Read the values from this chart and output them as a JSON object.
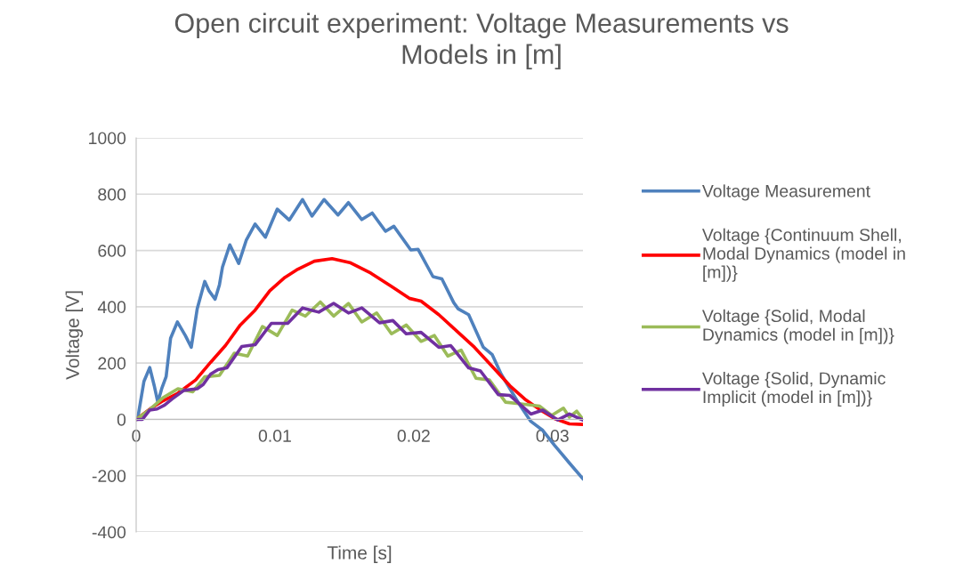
{
  "chart_data": {
    "type": "line",
    "title": "Open circuit experiment: Voltage Measurements vs Models in [m]",
    "xlabel": "Time [s]",
    "ylabel": "Voltage [V]",
    "xlim": [
      0,
      0.0322
    ],
    "xticks": [
      0,
      0.01,
      0.02,
      0.03
    ],
    "ylim": [
      -400,
      1000
    ],
    "yticks": [
      -400,
      -200,
      0,
      200,
      400,
      600,
      800,
      1000
    ],
    "grid": "y",
    "legend": "right",
    "marker": "none",
    "line_style": "solid",
    "series": [
      {
        "name": "Voltage Measurement",
        "color": "#4f81bd",
        "x": [
          0,
          0.0001,
          0.00056,
          0.00098,
          0.0013,
          0.00156,
          0.00184,
          0.00216,
          0.00248,
          0.00297,
          0.00354,
          0.00397,
          0.0044,
          0.00494,
          0.00526,
          0.00569,
          0.006,
          0.00622,
          0.00675,
          0.00739,
          0.00793,
          0.00857,
          0.00931,
          0.01017,
          0.01103,
          0.01199,
          0.01267,
          0.01354,
          0.01455,
          0.0153,
          0.01626,
          0.01701,
          0.01797,
          0.01857,
          0.01979,
          0.02032,
          0.02139,
          0.02203,
          0.02288,
          0.0232,
          0.02396,
          0.02502,
          0.02566,
          0.0263,
          0.02758,
          0.02844,
          0.0293,
          0.03015,
          0.03122,
          0.03218
        ],
        "values": [
          0,
          0,
          135,
          184,
          120,
          61,
          109,
          152,
          288,
          346,
          298,
          256,
          393,
          490,
          456,
          427,
          478,
          541,
          620,
          554,
          636,
          694,
          647,
          747,
          708,
          781,
          722,
          781,
          726,
          770,
          710,
          733,
          668,
          686,
          602,
          604,
          507,
          499,
          415,
          393,
          372,
          256,
          230,
          161,
          56,
          -7,
          -39,
          -92,
          -155,
          -210
        ]
      },
      {
        "name": "Voltage {Continuum Shell, Modal Dynamics (model in [m])}",
        "color": "#ff0000",
        "x": [
          0,
          0.00109,
          0.00194,
          0.00301,
          0.00429,
          0.00537,
          0.00643,
          0.0075,
          0.00857,
          0.00963,
          0.01071,
          0.01156,
          0.01284,
          0.01412,
          0.0154,
          0.0169,
          0.0184,
          0.01968,
          0.02053,
          0.02181,
          0.0231,
          0.02438,
          0.02566,
          0.02694,
          0.02801,
          0.02908,
          0.03015,
          0.03122,
          0.03218
        ],
        "values": [
          0,
          40,
          66,
          93,
          140,
          203,
          262,
          335,
          388,
          457,
          504,
          531,
          562,
          571,
          557,
          520,
          472,
          430,
          420,
          372,
          314,
          256,
          188,
          119,
          72,
          35,
          3,
          -16,
          -18
        ]
      },
      {
        "name": "Voltage {Solid, Modal Dynamics (model in [m])}",
        "color": "#9bbb59",
        "x": [
          0,
          0.00098,
          0.00194,
          0.00301,
          0.00408,
          0.00494,
          0.006,
          0.00707,
          0.00803,
          0.0091,
          0.01017,
          0.01124,
          0.0122,
          0.01327,
          0.01423,
          0.0153,
          0.01626,
          0.01733,
          0.0184,
          0.01947,
          0.02053,
          0.02149,
          0.02246,
          0.02342,
          0.02449,
          0.02545,
          0.02662,
          0.02758,
          0.02908,
          0.02994,
          0.03079,
          0.03122,
          0.03175,
          0.03218
        ],
        "values": [
          0,
          35,
          77,
          109,
          98,
          151,
          156,
          235,
          225,
          330,
          298,
          388,
          367,
          417,
          367,
          412,
          346,
          378,
          304,
          335,
          277,
          298,
          225,
          246,
          146,
          140,
          61,
          56,
          47,
          14,
          40,
          8,
          29,
          1
        ]
      },
      {
        "name": "Voltage {Solid, Dynamic Implicit (model in [m])}",
        "color": "#7030a0",
        "x": [
          0,
          0.00045,
          0.00098,
          0.00151,
          0.00205,
          0.00258,
          0.00344,
          0.0044,
          0.00483,
          0.00537,
          0.0059,
          0.00654,
          0.00761,
          0.00857,
          0.00974,
          0.01092,
          0.01199,
          0.01316,
          0.01423,
          0.0153,
          0.01626,
          0.01754,
          0.0185,
          0.01946,
          0.02053,
          0.02181,
          0.02267,
          0.02396,
          0.02481,
          0.0261,
          0.02694,
          0.02844,
          0.0293,
          0.03037,
          0.03122,
          0.03218
        ],
        "values": [
          0,
          0,
          33,
          37,
          51,
          72,
          103,
          109,
          124,
          161,
          177,
          183,
          259,
          265,
          341,
          341,
          396,
          381,
          412,
          378,
          396,
          343,
          351,
          304,
          309,
          256,
          262,
          183,
          172,
          88,
          85,
          19,
          33,
          -2,
          19,
          -2
        ]
      }
    ]
  }
}
